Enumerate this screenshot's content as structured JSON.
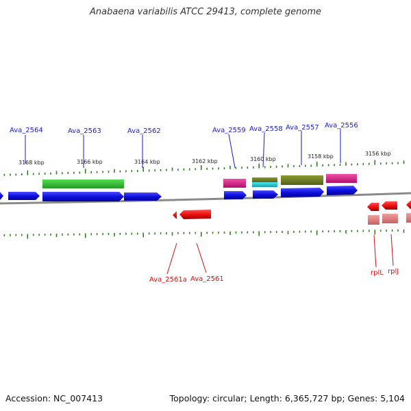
{
  "title": "Anabaena variabilis ATCC 29413, complete genome",
  "footer": {
    "accession": "Accession: NC_007413",
    "topology": "Topology: circular; Length: 6,365,727 bp; Genes: 5,104"
  },
  "scale_labels": [
    "3168 kbp",
    "3166 kbp",
    "3164 kbp",
    "3162 kbp",
    "3160 kbp",
    "3158 kbp",
    "3156 kbp"
  ],
  "gene_labels_top": [
    "Ava_2564",
    "Ava_2563",
    "Ava_2562",
    "Ava_2559",
    "Ava_2558",
    "Ava_2557",
    "Ava_2556"
  ],
  "gene_labels_bottom": [
    "Ava_2561a",
    "Ava_2561",
    "rplL",
    "rplJ"
  ],
  "colors": {
    "forward_gene": "#1010e0",
    "reverse_gene": "#ee1010",
    "reverse_pseudo": "#e27a7a",
    "label_forward": "#1a1acc",
    "label_reverse": "#cc1111",
    "backbone": "#8a8a8a",
    "tick": "#2f7d1f",
    "domain_green": "#33bb33",
    "domain_olive": "#6e7d22",
    "domain_pink": "#e0208a",
    "domain_cyan": "#20c8d0"
  }
}
